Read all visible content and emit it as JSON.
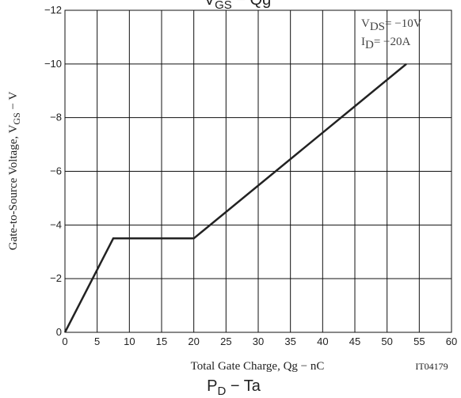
{
  "chart_data": {
    "type": "line",
    "title": {
      "main": "V",
      "sub": "GS",
      "rest": " − Qg"
    },
    "x_label": "Total Gate Charge, Qg − nC",
    "y_label": {
      "main": "Gate-to-Source Voltage, V",
      "sub": "GS",
      "rest": " − V"
    },
    "code": "IT04179",
    "annotations": [
      {
        "main": "V",
        "sub": "DS",
        "rest": "= −10V"
      },
      {
        "main": "I",
        "sub": "D",
        "rest": "= −20A"
      }
    ],
    "x": [
      0,
      7.5,
      20,
      53
    ],
    "series": [
      {
        "name": "VGS",
        "color": "#222222",
        "values": [
          0,
          -3.5,
          -3.5,
          -10
        ]
      }
    ],
    "xlim": [
      0,
      60
    ],
    "xticks": [
      0,
      5,
      10,
      15,
      20,
      25,
      30,
      35,
      40,
      45,
      50,
      55,
      60
    ],
    "ylim": [
      0,
      -12
    ],
    "yticks": [
      0,
      {
        "value": -2,
        "label": "−2"
      },
      {
        "value": -4,
        "label": "−4"
      },
      {
        "value": -6,
        "label": "−6"
      },
      {
        "value": -8,
        "label": "−8"
      },
      {
        "value": -10,
        "label": "−10"
      },
      {
        "value": -12,
        "label": "−12"
      }
    ],
    "grid": true,
    "next_title": {
      "main": "P",
      "sub": "D",
      "rest": " − Ta"
    }
  }
}
